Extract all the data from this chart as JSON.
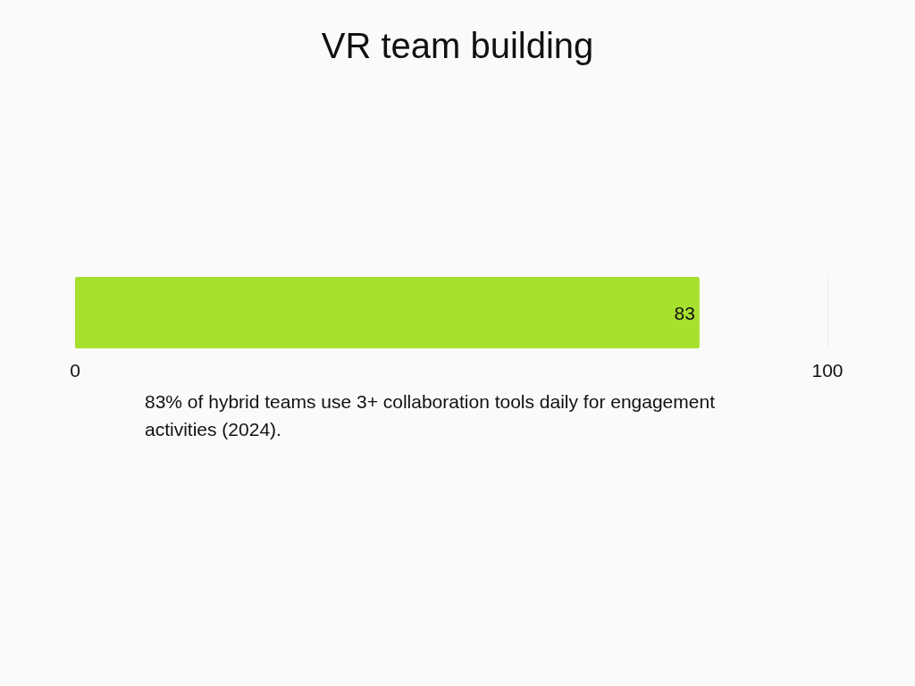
{
  "chart_data": {
    "type": "bar",
    "orientation": "horizontal",
    "title": "VR team building",
    "categories": [
      null
    ],
    "values": [
      83
    ],
    "color": "#a8e02f",
    "xlim": [
      0,
      100
    ],
    "xticks": [
      0,
      100
    ],
    "grid": "x",
    "data_labels": true,
    "annotations": [
      "83% of hybrid teams use 3+ collaboration tools daily for engagement activities (2024)."
    ]
  }
}
